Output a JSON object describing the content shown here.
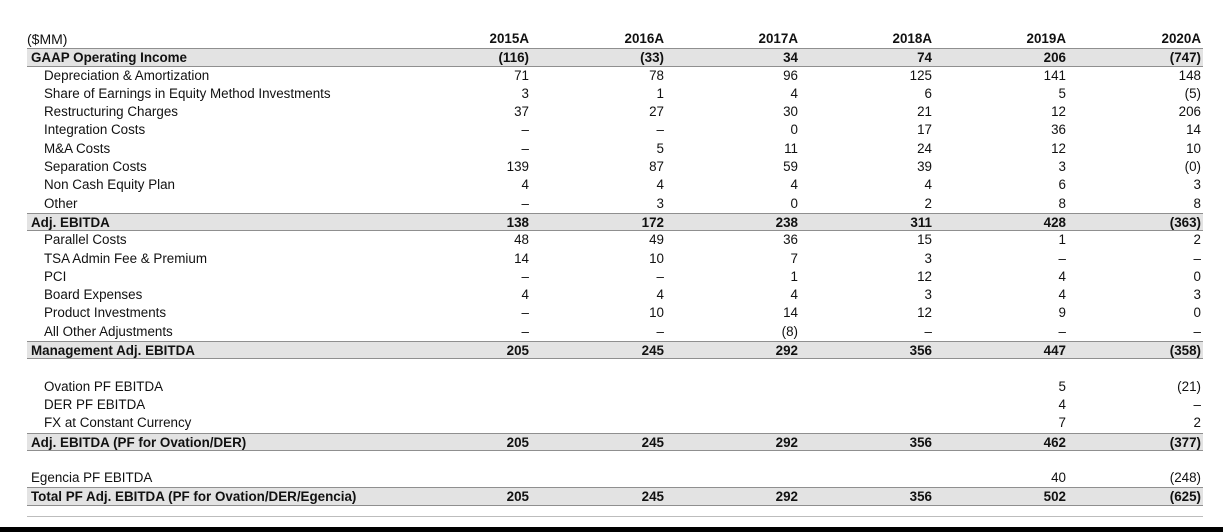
{
  "header": {
    "unit_label": "($MM)",
    "years": [
      "2015A",
      "2016A",
      "2017A",
      "2018A",
      "2019A",
      "2020A"
    ]
  },
  "rows": [
    {
      "label": "GAAP Operating Income",
      "type": "bold",
      "values": [
        "(116)",
        "(33)",
        "34",
        "74",
        "206",
        "(747)"
      ]
    },
    {
      "label": "Depreciation & Amortization",
      "type": "sub",
      "values": [
        "71",
        "78",
        "96",
        "125",
        "141",
        "148"
      ]
    },
    {
      "label": "Share of Earnings in Equity Method Investments",
      "type": "sub",
      "values": [
        "3",
        "1",
        "4",
        "6",
        "5",
        "(5)"
      ]
    },
    {
      "label": "Restructuring Charges",
      "type": "sub",
      "values": [
        "37",
        "27",
        "30",
        "21",
        "12",
        "206"
      ]
    },
    {
      "label": "Integration Costs",
      "type": "sub",
      "values": [
        "–",
        "–",
        "0",
        "17",
        "36",
        "14"
      ]
    },
    {
      "label": "M&A Costs",
      "type": "sub",
      "values": [
        "–",
        "5",
        "11",
        "24",
        "12",
        "10"
      ]
    },
    {
      "label": "Separation Costs",
      "type": "sub",
      "values": [
        "139",
        "87",
        "59",
        "39",
        "3",
        "(0)"
      ]
    },
    {
      "label": "Non Cash Equity Plan",
      "type": "sub",
      "values": [
        "4",
        "4",
        "4",
        "4",
        "6",
        "3"
      ]
    },
    {
      "label": "Other",
      "type": "sub",
      "values": [
        "–",
        "3",
        "0",
        "2",
        "8",
        "8"
      ]
    },
    {
      "label": "Adj. EBITDA",
      "type": "bold",
      "values": [
        "138",
        "172",
        "238",
        "311",
        "428",
        "(363)"
      ]
    },
    {
      "label": "Parallel Costs",
      "type": "sub",
      "values": [
        "48",
        "49",
        "36",
        "15",
        "1",
        "2"
      ]
    },
    {
      "label": "TSA Admin Fee & Premium",
      "type": "sub",
      "values": [
        "14",
        "10",
        "7",
        "3",
        "–",
        "–"
      ]
    },
    {
      "label": "PCI",
      "type": "sub",
      "values": [
        "–",
        "–",
        "1",
        "12",
        "4",
        "0"
      ]
    },
    {
      "label": "Board Expenses",
      "type": "sub",
      "values": [
        "4",
        "4",
        "4",
        "3",
        "4",
        "3"
      ]
    },
    {
      "label": "Product Investments",
      "type": "sub",
      "values": [
        "–",
        "10",
        "14",
        "12",
        "9",
        "0"
      ]
    },
    {
      "label": "All Other Adjustments",
      "type": "sub",
      "values": [
        "–",
        "–",
        "(8)",
        "–",
        "–",
        "–"
      ]
    },
    {
      "label": "Management Adj. EBITDA",
      "type": "bold",
      "values": [
        "205",
        "245",
        "292",
        "356",
        "447",
        "(358)"
      ]
    },
    {
      "type": "spacer"
    },
    {
      "label": "Ovation PF EBITDA",
      "type": "sub",
      "values": [
        "",
        "",
        "",
        "",
        "5",
        "(21)"
      ]
    },
    {
      "label": "DER PF EBITDA",
      "type": "sub",
      "values": [
        "",
        "",
        "",
        "",
        "4",
        "–"
      ]
    },
    {
      "label": "FX at Constant Currency",
      "type": "sub",
      "values": [
        "",
        "",
        "",
        "",
        "7",
        "2"
      ]
    },
    {
      "label": "Adj. EBITDA (PF for Ovation/DER)",
      "type": "bold",
      "values": [
        "205",
        "245",
        "292",
        "356",
        "462",
        "(377)"
      ]
    },
    {
      "type": "spacer"
    },
    {
      "label": "Egencia PF EBITDA",
      "type": "plain",
      "values": [
        "",
        "",
        "",
        "",
        "40",
        "(248)"
      ]
    },
    {
      "label": "Total PF Adj. EBITDA (PF for Ovation/DER/Egencia)",
      "type": "bold",
      "values": [
        "205",
        "245",
        "292",
        "356",
        "502",
        "(625)"
      ]
    }
  ]
}
